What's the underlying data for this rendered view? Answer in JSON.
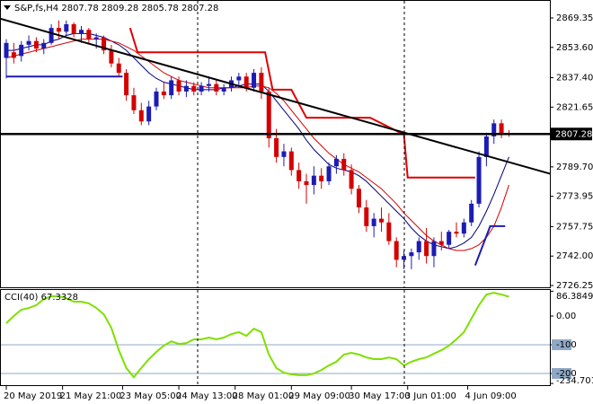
{
  "chart_data": [
    {
      "type": "candlestick",
      "title": "S&P,fs,H4",
      "up_color": "#1c1cb4",
      "down_color": "#d40000",
      "ylim": [
        2725.3,
        2878.95
      ],
      "yticks": [
        2869.35,
        {
          "value": 2853.6,
          "label": "2853.60"
        },
        {
          "value": 2837.4,
          "label": "2837.40"
        },
        2821.65,
        {
          "value": 2789.7,
          "label": "2789.70"
        },
        2773.95,
        2757.75,
        {
          "value": 2742.0,
          "label": "2742.00"
        },
        2726.25
      ],
      "xticks": [
        {
          "value": 0,
          "label": "20 May 2019"
        },
        {
          "value": 7.5,
          "label": "21 May 21:00"
        },
        {
          "value": 15.5,
          "label": "23 May 05:00"
        },
        {
          "value": 23,
          "label": "24 May 13:00"
        },
        {
          "value": 30.5,
          "label": "28 May 01:00"
        },
        {
          "value": 38,
          "label": "29 May 09:00"
        },
        {
          "value": 46,
          "label": "30 May 17:00"
        },
        {
          "value": 53.5,
          "label": "3 Jun 01:00"
        },
        {
          "value": 61.5,
          "label": "4 Jun 09:00"
        }
      ],
      "candles": [
        [
          2848,
          2858,
          2837,
          2856
        ],
        [
          2851,
          2856,
          2845,
          2848
        ],
        [
          2849,
          2857,
          2846,
          2855
        ],
        [
          2855,
          2860,
          2852,
          2857
        ],
        [
          2857,
          2859,
          2851,
          2853
        ],
        [
          2853,
          2858,
          2850,
          2856
        ],
        [
          2856,
          2866,
          2855,
          2864
        ],
        [
          2864,
          2868,
          2858,
          2862
        ],
        [
          2862,
          2868,
          2860,
          2866
        ],
        [
          2866,
          2867,
          2859,
          2861
        ],
        [
          2861,
          2865,
          2856,
          2863
        ],
        [
          2863,
          2864,
          2856,
          2858
        ],
        [
          2858,
          2861,
          2853,
          2859
        ],
        [
          2859,
          2860,
          2850,
          2852
        ],
        [
          2852,
          2855,
          2843,
          2845
        ],
        [
          2845,
          2848,
          2838,
          2840
        ],
        [
          2840,
          2842,
          2825,
          2828
        ],
        [
          2828,
          2832,
          2818,
          2820
        ],
        [
          2820,
          2824,
          2812,
          2814
        ],
        [
          2814,
          2825,
          2812,
          2822
        ],
        [
          2822,
          2832,
          2820,
          2830
        ],
        [
          2830,
          2835,
          2826,
          2828
        ],
        [
          2828,
          2838,
          2826,
          2836
        ],
        [
          2836,
          2838,
          2828,
          2830
        ],
        [
          2830,
          2836,
          2827,
          2833
        ],
        [
          2833,
          2835,
          2828,
          2830
        ],
        [
          2830,
          2835,
          2828,
          2833
        ],
        [
          2833,
          2838,
          2830,
          2834
        ],
        [
          2834,
          2836,
          2828,
          2830
        ],
        [
          2830,
          2834,
          2828,
          2832
        ],
        [
          2832,
          2838,
          2830,
          2836
        ],
        [
          2836,
          2840,
          2832,
          2838
        ],
        [
          2838,
          2840,
          2830,
          2832
        ],
        [
          2832,
          2842,
          2830,
          2840
        ],
        [
          2840,
          2843,
          2826,
          2830
        ],
        [
          2830,
          2832,
          2800,
          2805
        ],
        [
          2805,
          2810,
          2792,
          2795
        ],
        [
          2795,
          2802,
          2790,
          2798
        ],
        [
          2798,
          2800,
          2785,
          2788
        ],
        [
          2788,
          2792,
          2778,
          2782
        ],
        [
          2782,
          2786,
          2770,
          2780
        ],
        [
          2780,
          2790,
          2775,
          2785
        ],
        [
          2785,
          2789,
          2778,
          2782
        ],
        [
          2782,
          2792,
          2780,
          2790
        ],
        [
          2790,
          2796,
          2786,
          2794
        ],
        [
          2794,
          2797,
          2785,
          2788
        ],
        [
          2788,
          2791,
          2775,
          2778
        ],
        [
          2778,
          2780,
          2765,
          2768
        ],
        [
          2768,
          2772,
          2755,
          2758
        ],
        [
          2758,
          2765,
          2752,
          2762
        ],
        [
          2762,
          2768,
          2755,
          2760
        ],
        [
          2760,
          2765,
          2748,
          2750
        ],
        [
          2750,
          2752,
          2736,
          2740
        ],
        [
          2740,
          2745,
          2735,
          2742
        ],
        [
          2742,
          2746,
          2735,
          2744
        ],
        [
          2744,
          2752,
          2740,
          2750
        ],
        [
          2750,
          2757,
          2738,
          2742
        ],
        [
          2742,
          2752,
          2736,
          2750
        ],
        [
          2750,
          2755,
          2745,
          2748
        ],
        [
          2748,
          2756,
          2746,
          2755
        ],
        [
          2755,
          2760,
          2752,
          2754
        ],
        [
          2754,
          2762,
          2752,
          2760
        ],
        [
          2760,
          2772,
          2758,
          2770
        ],
        [
          2770,
          2798,
          2768,
          2795
        ],
        [
          2795,
          2808,
          2790,
          2806
        ],
        [
          2806,
          2815,
          2802,
          2813
        ],
        [
          2813,
          2815,
          2805,
          2807.78
        ],
        [
          2807.78,
          2809.28,
          2805.78,
          2807.28
        ]
      ],
      "lines": [
        {
          "color": "#000080",
          "values": [
            2852,
            2852,
            2853,
            2854,
            2855,
            2855,
            2857,
            2858,
            2860,
            2861,
            2861,
            2861,
            2860,
            2859,
            2857,
            2855,
            2852,
            2848,
            2844,
            2840,
            2837,
            2835,
            2834,
            2833,
            2832,
            2831,
            2831,
            2831,
            2831,
            2832,
            2832,
            2833,
            2834,
            2834,
            2834,
            2830,
            2825,
            2820,
            2815,
            2810,
            2804,
            2799,
            2795,
            2791,
            2789,
            2788,
            2787,
            2785,
            2782,
            2778,
            2774,
            2770,
            2766,
            2762,
            2757,
            2753,
            2750,
            2748,
            2747,
            2746,
            2747,
            2749,
            2752,
            2758,
            2766,
            2775,
            2785,
            2795
          ]
        },
        {
          "color": "#d40000",
          "values": [
            2848,
            2849,
            2850,
            2851,
            2852,
            2853,
            2854,
            2855,
            2856,
            2857,
            2858,
            2858,
            2858,
            2858,
            2857,
            2856,
            2854,
            2852,
            2849,
            2846,
            2843,
            2840,
            2838,
            2836,
            2835,
            2834,
            2833,
            2832,
            2832,
            2832,
            2832,
            2832,
            2832,
            2833,
            2833,
            2832,
            2829,
            2825,
            2820,
            2815,
            2810,
            2805,
            2801,
            2797,
            2794,
            2791,
            2789,
            2787,
            2784,
            2781,
            2778,
            2774,
            2770,
            2765,
            2761,
            2757,
            2753,
            2750,
            2748,
            2746,
            2745,
            2745,
            2746,
            2748,
            2752,
            2758,
            2768,
            2780
          ]
        }
      ],
      "steps": [
        {
          "color": "#e00000",
          "x": [
            16.5,
            17.5,
            34.5,
            35.5,
            38,
            40,
            48.5,
            53,
            53.5,
            62.5
          ],
          "values": [
            2864,
            2851,
            2851,
            2831,
            2831,
            2816,
            2816,
            2807,
            2784,
            2784
          ]
        },
        {
          "color": "#1c1cb4",
          "x": [
            0,
            15.5
          ],
          "values": [
            2838,
            2838
          ]
        },
        {
          "color": "#1c1cb4",
          "x": [
            62.5,
            64.5,
            66.5
          ],
          "values": [
            2737,
            2758,
            2758
          ]
        }
      ],
      "trendline": {
        "color": "#000000",
        "x": [
          -0.84,
          72.5
        ],
        "values": [
          2869,
          2786
        ]
      },
      "hline": 2807.28
    },
    {
      "type": "line",
      "title": "CCI(40)",
      "color": "#7ee000",
      "ylim": [
        -234.701,
        86.3849
      ],
      "yticks": [
        86.3849,
        {
          "value": 0,
          "label": "0.00"
        },
        -100,
        -200,
        -234.701
      ],
      "levels": [
        -100,
        -200
      ],
      "values": [
        -25,
        0,
        22,
        28,
        38,
        59,
        69,
        69,
        62,
        50,
        50,
        44,
        28,
        6,
        -41,
        -119,
        -181,
        -213,
        -181,
        -150,
        -125,
        -103,
        -88,
        -97,
        -94,
        -81,
        -81,
        -75,
        -81,
        -75,
        -63,
        -56,
        -69,
        -44,
        -56,
        -134,
        -181,
        -197,
        -203,
        -206,
        -206,
        -200,
        -188,
        -172,
        -159,
        -134,
        -128,
        -134,
        -144,
        -150,
        -150,
        -144,
        -150,
        -172,
        -159,
        -150,
        -144,
        -131,
        -119,
        -103,
        -81,
        -56,
        -9,
        38,
        75,
        81,
        75,
        67.3328
      ]
    }
  ]
}
